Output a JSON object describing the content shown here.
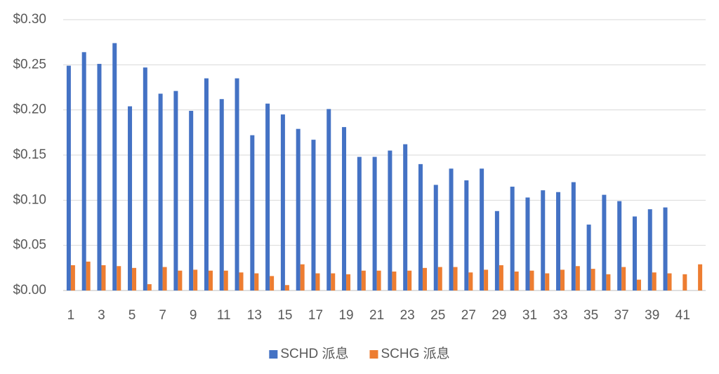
{
  "chart_data": {
    "type": "bar",
    "categories": [
      "1",
      null,
      "3",
      null,
      "5",
      null,
      "7",
      null,
      "9",
      null,
      "11",
      null,
      "13",
      null,
      "15",
      null,
      "17",
      null,
      "19",
      null,
      "21",
      null,
      "23",
      null,
      "25",
      null,
      "27",
      null,
      "29",
      null,
      "31",
      null,
      "33",
      null,
      "35",
      null,
      "37",
      null,
      "39",
      null,
      "41",
      null
    ],
    "series": [
      {
        "name": "SCHD 派息",
        "color": "#4472c4",
        "values": [
          0.249,
          0.264,
          0.251,
          0.274,
          0.204,
          0.247,
          0.218,
          0.221,
          0.199,
          0.235,
          0.212,
          0.235,
          0.172,
          0.207,
          0.195,
          0.179,
          0.167,
          0.201,
          0.181,
          0.148,
          0.148,
          0.155,
          0.162,
          0.14,
          0.117,
          0.135,
          0.122,
          0.135,
          0.088,
          0.115,
          0.103,
          0.111,
          0.109,
          0.12,
          0.073,
          0.106,
          0.099,
          0.082,
          0.09,
          0.092,
          null,
          null
        ]
      },
      {
        "name": "SCHG 派息",
        "color": "#ed7d31",
        "values": [
          0.028,
          0.032,
          0.028,
          0.027,
          0.025,
          0.007,
          0.026,
          0.022,
          0.023,
          0.022,
          0.022,
          0.02,
          0.019,
          0.016,
          0.006,
          0.029,
          0.019,
          0.019,
          0.018,
          0.022,
          0.022,
          0.021,
          0.022,
          0.025,
          0.026,
          0.026,
          0.02,
          0.023,
          0.028,
          0.021,
          0.022,
          0.019,
          0.023,
          0.027,
          0.024,
          0.018,
          0.026,
          0.012,
          0.02,
          0.019,
          0.018,
          0.029
        ]
      }
    ],
    "ylim": [
      0,
      0.3
    ],
    "yticks": [
      {
        "value": 0,
        "label": "$0.00"
      },
      {
        "value": 0.05,
        "label": "$0.05"
      },
      {
        "value": 0.1,
        "label": "$0.10"
      },
      {
        "value": 0.15,
        "label": "$0.15"
      },
      {
        "value": 0.2,
        "label": "$0.20"
      },
      {
        "value": 0.25,
        "label": "$0.25"
      },
      {
        "value": 0.3,
        "label": "$0.30"
      }
    ],
    "grid": true,
    "legend": "bottom"
  }
}
